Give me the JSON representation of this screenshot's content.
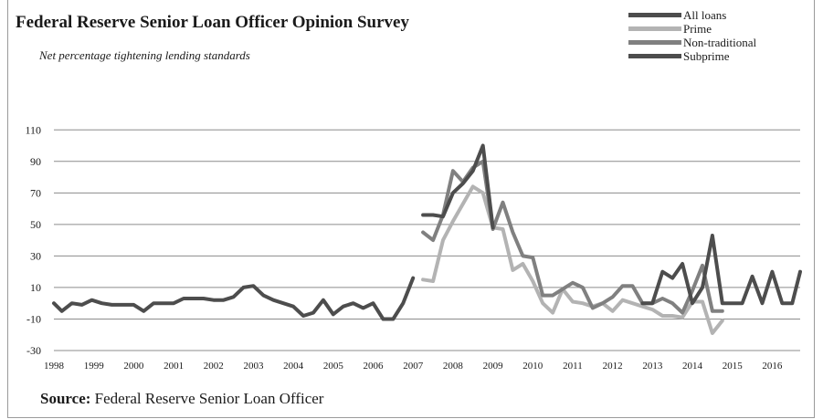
{
  "chart_data": {
    "type": "line",
    "title": "Federal Reserve Senior Loan Officer Opinion Survey",
    "subtitle": "Net percentage tightening lending standards",
    "source_label": "Source:",
    "source_text": " Federal Reserve Senior Loan Officer",
    "xlabel": "",
    "ylabel": "",
    "xlim": [
      1998.0,
      2016.7
    ],
    "ylim": [
      -30,
      120
    ],
    "y_ticks": [
      -30,
      -10,
      10,
      30,
      50,
      70,
      90,
      110
    ],
    "x_ticks": [
      1998,
      1999,
      2000,
      2001,
      2002,
      2003,
      2004,
      2005,
      2006,
      2007,
      2008,
      2009,
      2010,
      2011,
      2012,
      2013,
      2014,
      2015,
      2016
    ],
    "grid": true,
    "legend_position": "top-right",
    "series": [
      {
        "name": "All loans",
        "color": "#4d4d4d",
        "points": [
          [
            1998.0,
            0
          ],
          [
            1998.2,
            -5
          ],
          [
            1998.45,
            0
          ],
          [
            1998.7,
            -1
          ],
          [
            1998.95,
            2
          ],
          [
            1999.2,
            0
          ],
          [
            1999.45,
            -1
          ],
          [
            1999.7,
            -1
          ],
          [
            2000.0,
            -1
          ],
          [
            2000.25,
            -5
          ],
          [
            2000.5,
            0
          ],
          [
            2000.75,
            0
          ],
          [
            2001.0,
            0
          ],
          [
            2001.25,
            3
          ],
          [
            2001.5,
            3
          ],
          [
            2001.75,
            3
          ],
          [
            2002.0,
            2
          ],
          [
            2002.25,
            2
          ],
          [
            2002.5,
            4
          ],
          [
            2002.75,
            10
          ],
          [
            2003.0,
            11
          ],
          [
            2003.25,
            5
          ],
          [
            2003.5,
            2
          ],
          [
            2003.75,
            0
          ],
          [
            2004.0,
            -2
          ],
          [
            2004.25,
            -8
          ],
          [
            2004.5,
            -6
          ],
          [
            2004.75,
            2
          ],
          [
            2005.0,
            -7
          ],
          [
            2005.25,
            -2
          ],
          [
            2005.5,
            0
          ],
          [
            2005.75,
            -3
          ],
          [
            2006.0,
            0
          ],
          [
            2006.25,
            -10
          ],
          [
            2006.5,
            -10
          ],
          [
            2006.75,
            0
          ],
          [
            2007.0,
            16
          ]
        ]
      },
      {
        "name": "Prime",
        "color": "#b3b3b3",
        "points": [
          [
            2007.25,
            15
          ],
          [
            2007.5,
            14
          ],
          [
            2007.75,
            40
          ],
          [
            2008.0,
            52
          ],
          [
            2008.25,
            63
          ],
          [
            2008.5,
            74
          ],
          [
            2008.75,
            70
          ],
          [
            2009.0,
            48
          ],
          [
            2009.25,
            47
          ],
          [
            2009.5,
            21
          ],
          [
            2009.75,
            25
          ],
          [
            2010.0,
            14
          ],
          [
            2010.25,
            0
          ],
          [
            2010.5,
            -6
          ],
          [
            2010.75,
            9
          ],
          [
            2011.0,
            1
          ],
          [
            2011.25,
            0
          ],
          [
            2011.5,
            -2
          ],
          [
            2011.75,
            0
          ],
          [
            2012.0,
            -5
          ],
          [
            2012.25,
            2
          ],
          [
            2012.5,
            0
          ],
          [
            2012.75,
            -2
          ],
          [
            2013.0,
            -4
          ],
          [
            2013.25,
            -8
          ],
          [
            2013.5,
            -8
          ],
          [
            2013.75,
            -9
          ],
          [
            2014.0,
            1
          ],
          [
            2014.25,
            1
          ],
          [
            2014.5,
            -19
          ],
          [
            2014.75,
            -11
          ]
        ]
      },
      {
        "name": "Non-traditional",
        "color": "#808080",
        "points": [
          [
            2007.25,
            45
          ],
          [
            2007.5,
            40
          ],
          [
            2007.75,
            56
          ],
          [
            2008.0,
            84
          ],
          [
            2008.25,
            77
          ],
          [
            2008.5,
            86
          ],
          [
            2008.75,
            90
          ],
          [
            2009.0,
            47
          ],
          [
            2009.25,
            64
          ],
          [
            2009.5,
            45
          ],
          [
            2009.75,
            30
          ],
          [
            2010.0,
            29
          ],
          [
            2010.25,
            5
          ],
          [
            2010.5,
            5
          ],
          [
            2010.75,
            9
          ],
          [
            2011.0,
            13
          ],
          [
            2011.25,
            10
          ],
          [
            2011.5,
            -3
          ],
          [
            2011.75,
            0
          ],
          [
            2012.0,
            4
          ],
          [
            2012.25,
            11
          ],
          [
            2012.5,
            11
          ],
          [
            2012.75,
            0
          ],
          [
            2013.0,
            0
          ],
          [
            2013.25,
            3
          ],
          [
            2013.5,
            0
          ],
          [
            2013.75,
            -6
          ],
          [
            2014.0,
            8
          ],
          [
            2014.25,
            24
          ],
          [
            2014.5,
            -5
          ],
          [
            2014.75,
            -5
          ]
        ]
      },
      {
        "name": "Subprime",
        "color": "#4d4d4d",
        "points": [
          [
            2007.25,
            56
          ],
          [
            2007.5,
            56
          ],
          [
            2007.75,
            55
          ],
          [
            2008.0,
            70
          ],
          [
            2008.25,
            76
          ],
          [
            2008.5,
            84
          ],
          [
            2008.75,
            100
          ],
          [
            2009.0,
            48
          ],
          [
            2012.75,
            0
          ],
          [
            2013.0,
            0
          ],
          [
            2013.25,
            20
          ],
          [
            2013.5,
            16
          ],
          [
            2013.75,
            25
          ],
          [
            2014.0,
            0
          ],
          [
            2014.25,
            10
          ],
          [
            2014.5,
            43
          ],
          [
            2014.75,
            0
          ],
          [
            2015.0,
            0
          ],
          [
            2015.25,
            0
          ],
          [
            2015.5,
            17
          ],
          [
            2015.75,
            0
          ],
          [
            2016.0,
            20
          ],
          [
            2016.25,
            0
          ],
          [
            2016.5,
            0
          ],
          [
            2016.7,
            20
          ]
        ],
        "breaks_after_x": [
          2009.0
        ]
      }
    ]
  }
}
